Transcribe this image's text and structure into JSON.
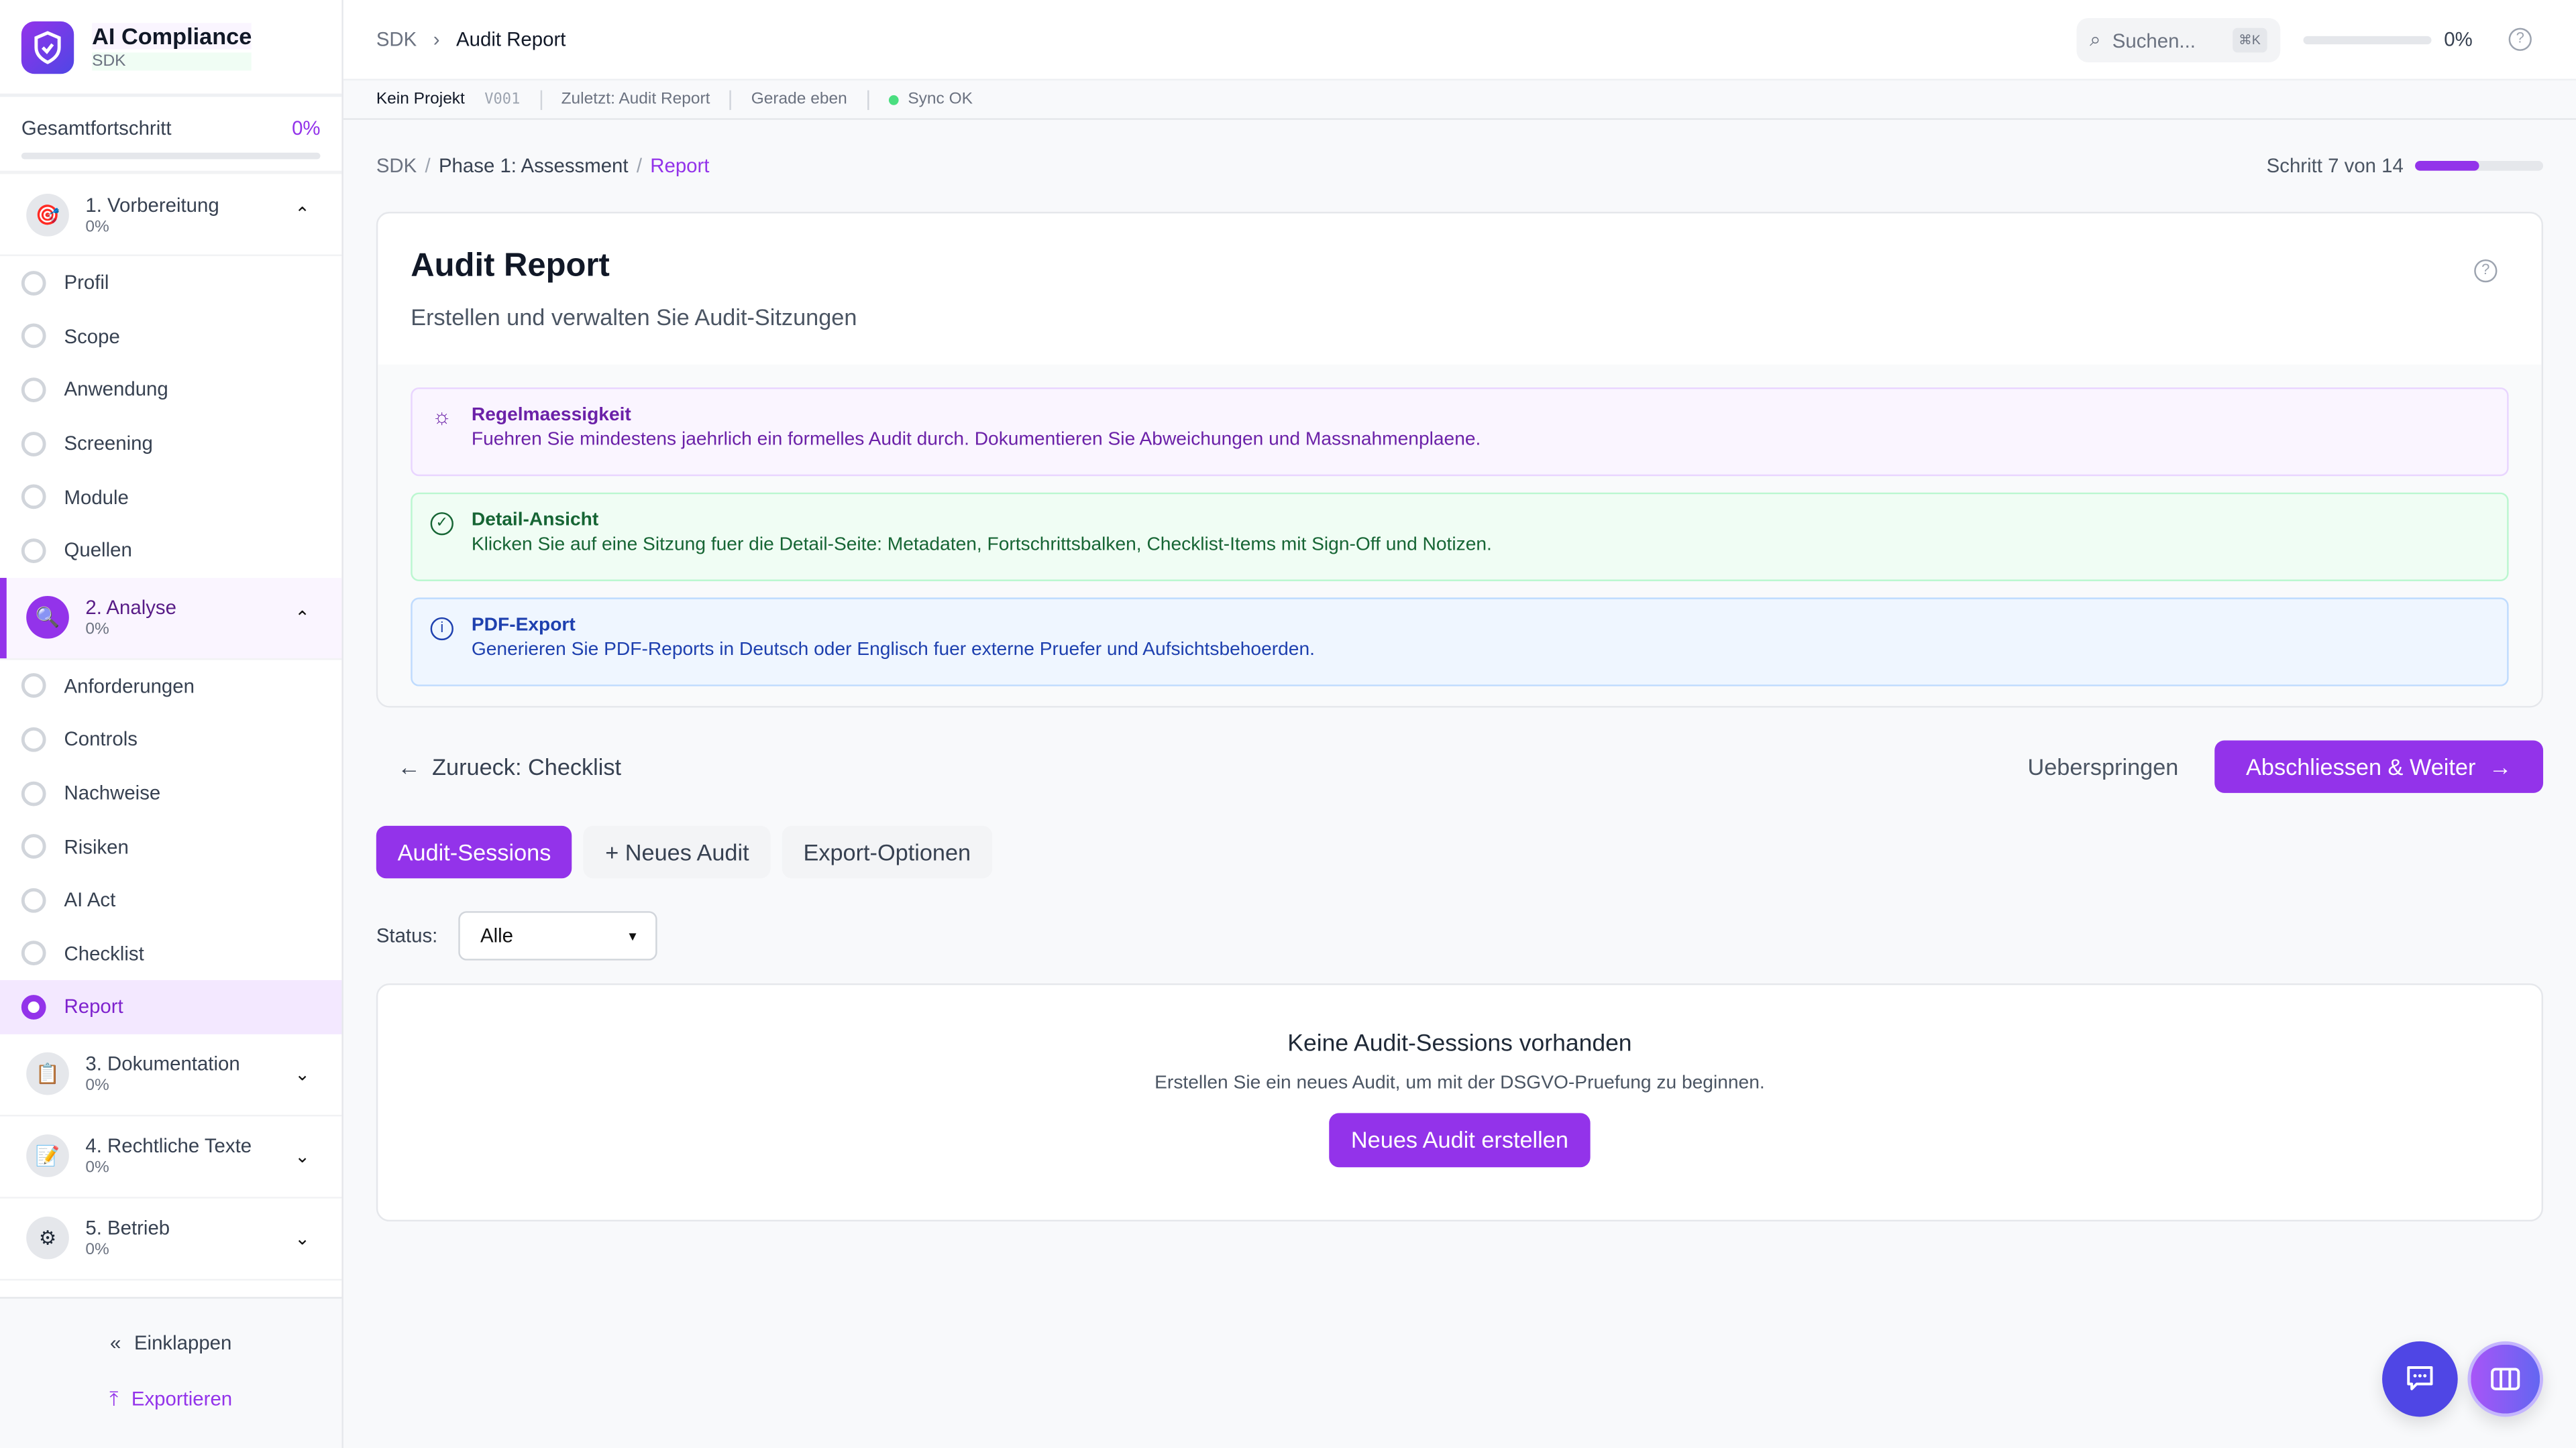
{
  "app": {
    "title": "AI Compliance",
    "subtitle": "SDK",
    "logo_icon": "shield-check-icon"
  },
  "colors": {
    "accent": "#9333ea",
    "chat": "#4f46e5"
  },
  "sidebar": {
    "total_label": "Gesamtfortschritt",
    "total_pct": "0%",
    "total_progress": 0,
    "sections": [
      {
        "label": "1. Vorbereitung",
        "pct": "0%",
        "icon": "🎯",
        "expanded": true,
        "items": [
          "Profil",
          "Scope",
          "Anwendung",
          "Screening",
          "Module",
          "Quellen"
        ]
      },
      {
        "label": "2. Analyse",
        "pct": "0%",
        "icon": "🔍",
        "expanded": true,
        "active": true,
        "items": [
          "Anforderungen",
          "Controls",
          "Nachweise",
          "Risiken",
          "AI Act",
          "Checklist",
          "Report"
        ]
      },
      {
        "label": "3. Dokumentation",
        "pct": "0%",
        "icon": "📋"
      },
      {
        "label": "4. Rechtliche Texte",
        "pct": "0%",
        "icon": "📝"
      },
      {
        "label": "5. Betrieb",
        "pct": "0%",
        "icon": "⚙"
      }
    ],
    "active_item": "Report",
    "collapse": "Einklappen",
    "export": "Exportieren"
  },
  "header": {
    "crumb_root": "SDK",
    "crumb_current": "Audit Report",
    "search_placeholder": "Suchen...",
    "search_kbd": "⌘K",
    "progress_pct": "0%",
    "progress": 0
  },
  "statusbar": {
    "project": "Kein Projekt",
    "version": "V001",
    "last": "Zuletzt: Audit Report",
    "time": "Gerade eben",
    "sync": "Sync OK"
  },
  "main": {
    "breadcrumb": [
      "SDK",
      "Phase 1: Assessment",
      "Report"
    ],
    "step_label": "Schritt 7 von 14",
    "step_progress": 0.5,
    "title": "Audit Report",
    "subtitle": "Erstellen und verwalten Sie Audit-Sitzungen",
    "tips": [
      {
        "title": "Regelmaessigkeit",
        "text": "Fuehren Sie mindestens jaehrlich ein formelles Audit durch. Dokumentieren Sie Abweichungen und Massnahmenplaene.",
        "icon": "lightbulb-icon"
      },
      {
        "title": "Detail-Ansicht",
        "text": "Klicken Sie auf eine Sitzung fuer die Detail-Seite: Metadaten, Fortschrittsbalken, Checklist-Items mit Sign-Off und Notizen.",
        "icon": "check-circle-icon"
      },
      {
        "title": "PDF-Export",
        "text": "Generieren Sie PDF-Reports in Deutsch oder Englisch fuer externe Pruefer und Aufsichtsbehoerden.",
        "icon": "info-icon"
      }
    ],
    "back": "Zurueck: Checklist",
    "skip": "Ueberspringen",
    "next": "Abschliessen & Weiter",
    "tabs": [
      "Audit-Sessions",
      "+ Neues Audit",
      "Export-Optionen"
    ],
    "filter_label": "Status:",
    "filter_value": "Alle",
    "empty_title": "Keine Audit-Sessions vorhanden",
    "empty_text": "Erstellen Sie ein neues Audit, um mit der DSGVO-Pruefung zu beginnen.",
    "empty_button": "Neues Audit erstellen"
  }
}
